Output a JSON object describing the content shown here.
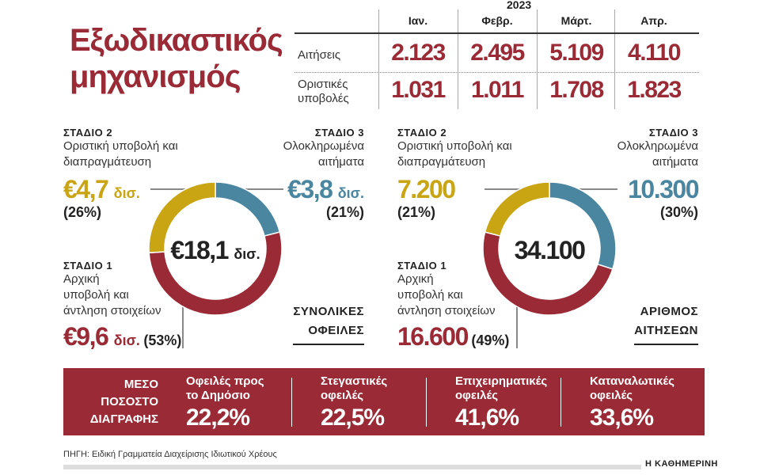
{
  "title": [
    "Εξωδικαστικός",
    "μηχανισμός"
  ],
  "table": {
    "year": "2023",
    "columns": [
      "Ιαν.",
      "Φεβρ.",
      "Μάρτ.",
      "Απρ."
    ],
    "rows": [
      {
        "label": [
          "Αιτήσεις"
        ],
        "values": [
          "2.123",
          "2.495",
          "5.109",
          "4.110"
        ]
      },
      {
        "label": [
          "Οριστικές",
          "υποβολές"
        ],
        "values": [
          "1.031",
          "1.011",
          "1.708",
          "1.823"
        ]
      }
    ]
  },
  "colors": {
    "stage1": "#9a2a35",
    "stage2": "#c9a514",
    "stage3": "#4a86a0"
  },
  "chart_data": [
    {
      "type": "pie",
      "center_label": "€18,1",
      "center_unit": "δισ.",
      "footer": [
        "ΣΥΝΟΛΙΚΕΣ",
        "ΟΦΕΙΛΕΣ"
      ],
      "slices": [
        {
          "stage": "ΣΤΑΔΙΟ 3",
          "desc": [
            "Ολοκληρωμένα",
            "αιτήματα"
          ],
          "value": 3.8,
          "value_label": "€3,8",
          "unit": "δισ.",
          "percent": 21,
          "percent_label": "(21%)",
          "color": "#4a86a0"
        },
        {
          "stage": "ΣΤΑΔΙΟ 1",
          "desc": [
            "Αρχική",
            "υποβολή και",
            "άντληση στοιχείων"
          ],
          "value": 9.6,
          "value_label": "€9,6",
          "unit": "δισ.",
          "percent": 53,
          "percent_label": "(53%)",
          "color": "#9a2a35"
        },
        {
          "stage": "ΣΤΑΔΙΟ 2",
          "desc": [
            "Οριστική υποβολή και",
            "διαπραγμάτευση"
          ],
          "value": 4.7,
          "value_label": "€4,7",
          "unit": "δισ.",
          "percent": 26,
          "percent_label": "(26%)",
          "color": "#c9a514"
        }
      ]
    },
    {
      "type": "pie",
      "center_label": "34.100",
      "center_unit": "",
      "footer": [
        "ΑΡΙΘΜΟΣ",
        "ΑΙΤΗΣΕΩΝ"
      ],
      "slices": [
        {
          "stage": "ΣΤΑΔΙΟ 3",
          "desc": [
            "Ολοκληρωμένα",
            "αιτήματα"
          ],
          "value": 10300,
          "value_label": "10.300",
          "unit": "",
          "percent": 30,
          "percent_label": "(30%)",
          "color": "#4a86a0"
        },
        {
          "stage": "ΣΤΑΔΙΟ 1",
          "desc": [
            "Αρχική",
            "υποβολή και",
            "άντληση στοιχείων"
          ],
          "value": 16600,
          "value_label": "16.600",
          "unit": "",
          "percent": 49,
          "percent_label": "(49%)",
          "color": "#9a2a35"
        },
        {
          "stage": "ΣΤΑΔΙΟ 2",
          "desc": [
            "Οριστική υποβολή και",
            "διαπραγμάτευση"
          ],
          "value": 7200,
          "value_label": "7.200",
          "unit": "",
          "percent": 21,
          "percent_label": "(21%)",
          "color": "#c9a514"
        }
      ]
    }
  ],
  "band": {
    "label": [
      "ΜΕΣΟ",
      "ΠΟΣΟΣΤΟ",
      "ΔΙΑΓΡΑΦΗΣ"
    ],
    "items": [
      {
        "title": [
          "Οφειλές προς",
          "το Δημόσιο"
        ],
        "value": "22,2%"
      },
      {
        "title": [
          "Στεγαστικές",
          "οφειλές"
        ],
        "value": "22,5%"
      },
      {
        "title": [
          "Επιχειρηματικές",
          "οφειλές"
        ],
        "value": "41,6%"
      },
      {
        "title": [
          "Καταναλωτικές",
          "οφειλές"
        ],
        "value": "33,6%"
      }
    ]
  },
  "source": "ΠΗΓΗ: Ειδική Γραμματεία Διαχείρισης Ιδιωτικού Χρέους",
  "brand": "Η ΚΑΘΗΜΕΡΙΝΗ"
}
